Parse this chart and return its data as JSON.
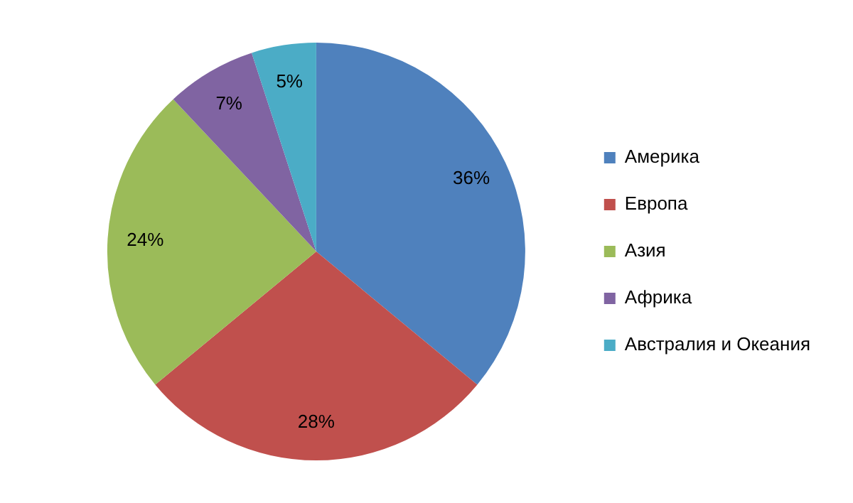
{
  "chart_data": {
    "type": "pie",
    "categories": [
      "Америка",
      "Европа",
      "Азия",
      "Африка",
      "Австралия и Океания"
    ],
    "values": [
      36,
      28,
      24,
      7,
      5
    ],
    "colors": [
      "#4f81bd",
      "#c0504d",
      "#9bbb59",
      "#8064a2",
      "#4bacc6"
    ],
    "value_labels": [
      "36%",
      "28%",
      "24%",
      "7%",
      "5%"
    ],
    "legend": "right"
  }
}
